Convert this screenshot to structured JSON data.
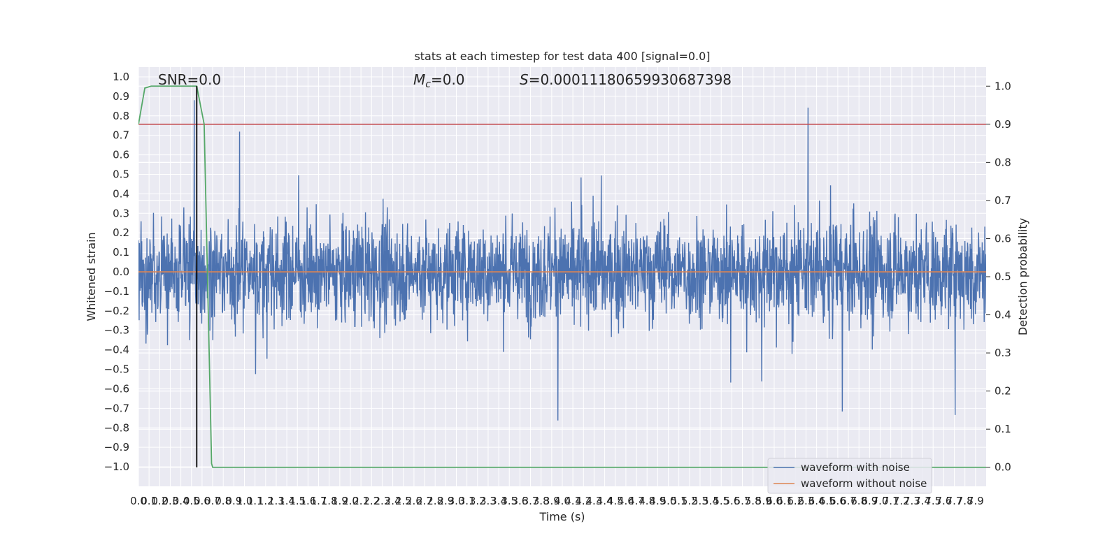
{
  "chart_data": {
    "type": "line",
    "title": "stats at each timestep for test data 400 [signal=0.0]",
    "xlabel": "Time (s)",
    "ylabel": "Whitened strain",
    "y2label": "Detection probability",
    "xlim": [
      0.0,
      8.0
    ],
    "ylim": [
      -1.1,
      1.05
    ],
    "y2lim": [
      -0.05,
      1.05
    ],
    "x_tick_step": 0.1,
    "x_tick_max": 7.9,
    "y_tick_step": 0.1,
    "y2_tick_step": 0.1,
    "grid": true,
    "legend_position": "lower-right",
    "annotations": {
      "snr": "SNR=0.0",
      "mc_symbol": "M",
      "mc_subscript": "c",
      "mc_value": "=0.0",
      "s_symbol": "S",
      "s_value": "=0.00011180659930687398"
    },
    "series": [
      {
        "name": "waveform with noise",
        "color": "#4c72b0",
        "axis": "left",
        "description": "dense whitened noise, amplitude roughly within ±0.6 with spikes to ±1.0"
      },
      {
        "name": "waveform without noise",
        "color": "#dd8452",
        "axis": "left",
        "constant": 0.0
      },
      {
        "color": "#55a868",
        "axis": "right",
        "x": [
          0.0,
          0.06,
          0.12,
          0.2,
          0.3,
          0.45,
          0.55,
          0.62,
          0.69,
          0.7,
          0.75,
          8.0
        ],
        "values": [
          0.9,
          0.995,
          1.0,
          1.0,
          1.0,
          1.0,
          1.0,
          0.9,
          0.01,
          0.0,
          0.0,
          0.0
        ]
      }
    ],
    "threshold_line": {
      "value": 0.9,
      "axis": "right",
      "color": "#c44e52"
    },
    "marker_line": {
      "x": 0.55,
      "color": "#000000"
    }
  }
}
